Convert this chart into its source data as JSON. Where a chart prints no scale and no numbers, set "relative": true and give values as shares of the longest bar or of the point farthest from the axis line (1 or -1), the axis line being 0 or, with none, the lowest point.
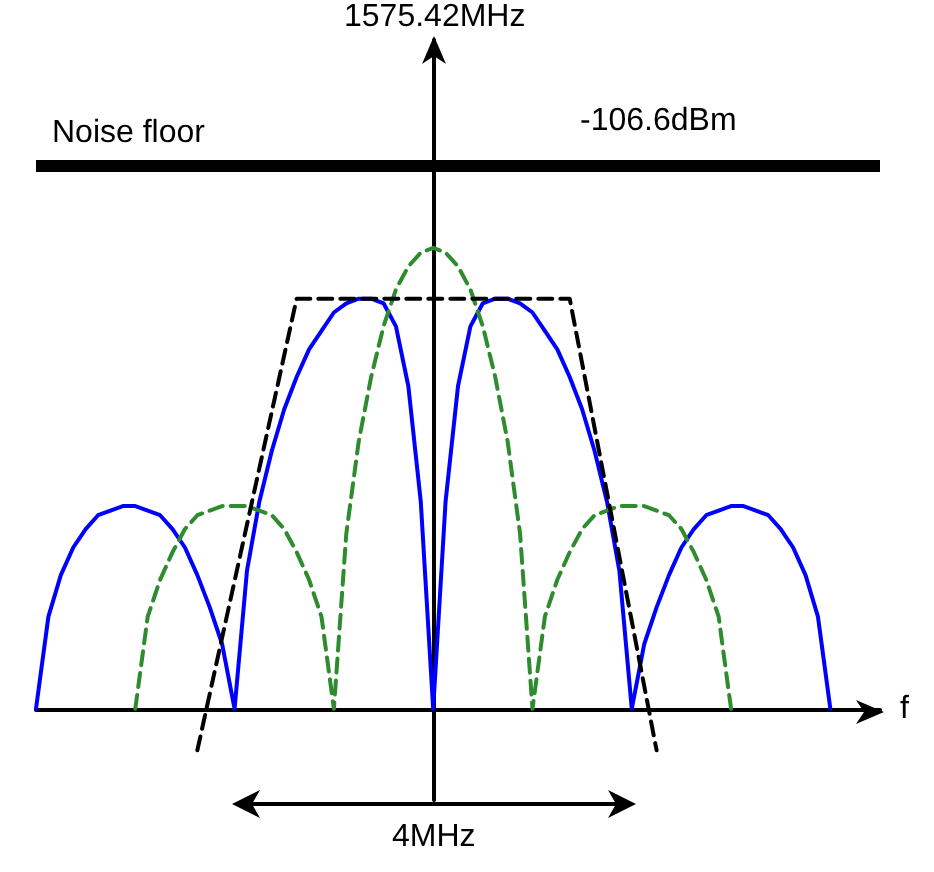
{
  "chart_data": {
    "type": "line",
    "relative": true,
    "xlabel": "f",
    "categories": [
      null,
      null,
      null,
      null,
      null,
      null,
      null,
      null,
      null,
      null,
      null,
      null,
      null,
      null,
      null,
      null,
      null,
      null,
      null,
      null,
      null,
      null,
      null,
      null,
      null,
      null,
      null,
      null,
      null,
      null,
      null,
      null,
      null,
      null,
      null,
      null,
      null,
      null,
      null,
      null,
      null,
      null,
      null,
      null,
      null,
      null,
      null,
      null,
      null,
      null,
      null,
      null,
      null,
      null,
      null,
      null,
      null,
      null,
      null,
      null,
      null,
      null,
      null,
      null,
      null,
      null,
      null,
      null,
      null
    ],
    "marker": "none",
    "series": [
      {
        "color": "#0000ff",
        "line_style": "solid",
        "values": [
          0,
          0.2,
          0.29,
          0.35,
          0.39,
          0.42,
          0.43,
          0.44,
          0.44,
          0.43,
          0.42,
          0.39,
          0.35,
          0.29,
          0.22,
          0.14,
          0,
          0.3,
          0.45,
          0.56,
          0.65,
          0.72,
          0.78,
          0.82,
          0.86,
          0.88,
          0.89,
          0.89,
          0.88,
          0.83,
          0.7,
          0.45,
          0,
          0.45,
          0.7,
          0.83,
          0.88,
          0.89,
          0.89,
          0.88,
          0.86,
          0.82,
          0.78,
          0.72,
          0.65,
          0.56,
          0.45,
          0.3,
          0,
          0.14,
          0.22,
          0.29,
          0.35,
          0.39,
          0.42,
          0.43,
          0.44,
          0.44,
          0.43,
          0.42,
          0.39,
          0.35,
          0.29,
          0.2,
          0,
          null,
          null,
          null,
          null
        ]
      },
      {
        "color": "#2e8b2e",
        "line_style": "dashed",
        "values": [
          null,
          null,
          null,
          null,
          null,
          null,
          null,
          null,
          0,
          0.2,
          0.28,
          0.34,
          0.39,
          0.42,
          0.43,
          0.44,
          0.44,
          0.44,
          0.43,
          0.42,
          0.39,
          0.34,
          0.28,
          0.2,
          0,
          0.38,
          0.58,
          0.72,
          0.83,
          0.91,
          0.96,
          0.99,
          1,
          0.99,
          0.96,
          0.91,
          0.83,
          0.72,
          0.58,
          0.38,
          0,
          0.2,
          0.28,
          0.34,
          0.39,
          0.42,
          0.43,
          0.44,
          0.44,
          0.44,
          0.43,
          0.42,
          0.39,
          0.34,
          0.28,
          0.2,
          0,
          null,
          null,
          null,
          null,
          null,
          null,
          null,
          null,
          null,
          null,
          null,
          null
        ]
      },
      {
        "color": "#000000",
        "line_style": "dashed",
        "values": [
          null,
          null,
          null,
          null,
          null,
          null,
          null,
          null,
          null,
          null,
          null,
          null,
          null,
          -0.09,
          null,
          null,
          null,
          null,
          null,
          null,
          null,
          0.89,
          null,
          null,
          null,
          null,
          null,
          null,
          null,
          null,
          null,
          null,
          null,
          null,
          null,
          null,
          null,
          null,
          null,
          null,
          null,
          null,
          null,
          0.89,
          null,
          null,
          null,
          null,
          null,
          null,
          -0.09,
          null,
          null,
          null,
          null,
          null,
          null,
          null,
          null,
          null,
          null,
          null,
          null,
          null,
          null,
          null,
          null,
          null,
          null
        ]
      }
    ],
    "ref_lines": [
      {
        "axis": "y",
        "value": 1.18,
        "label": "Noise floor",
        "color": "#000000"
      }
    ],
    "annotations": [
      "1575.42MHz",
      "-106.6dBm",
      "4MHz"
    ]
  }
}
